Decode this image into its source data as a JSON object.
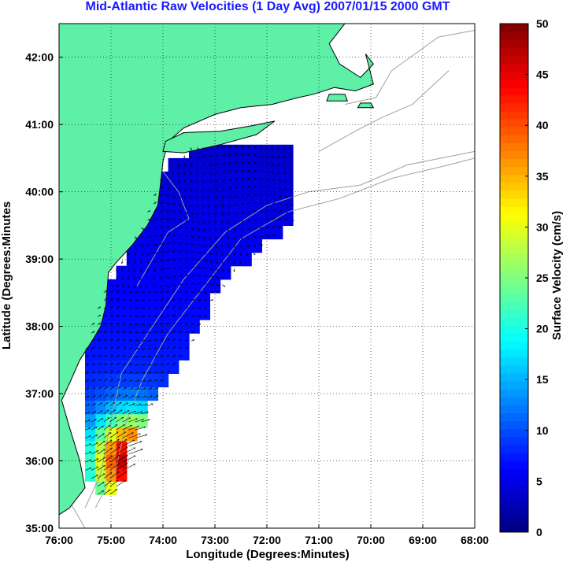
{
  "chart_data": {
    "type": "heatmap",
    "title": "Mid-Atlantic Raw Velocities (1 Day Avg) 2007/01/15 2000 GMT",
    "xlabel": "Longitude (Degrees:Minutes)",
    "ylabel": "Latitude (Degrees:Minutes",
    "x_ticks": [
      "76:00",
      "75:00",
      "74:00",
      "73:00",
      "72:00",
      "71:00",
      "70:00",
      "69:00",
      "68:00"
    ],
    "y_ticks": [
      "42:00",
      "41:00",
      "40:00",
      "39:00",
      "38:00",
      "37:00",
      "36:00",
      "35:00"
    ],
    "xlim": [
      -76,
      -68
    ],
    "ylim": [
      35,
      42.5
    ],
    "grid": true,
    "colorbar": {
      "label": "Surface Velocity (cm/s)",
      "min": 0,
      "max": 50,
      "ticks": [
        "50",
        "45",
        "40",
        "35",
        "30",
        "25",
        "20",
        "15",
        "10",
        "5",
        "0"
      ],
      "colormap": "jet"
    },
    "colors": {
      "land": "#5ef0a6",
      "coastline": "#000000",
      "bathymetry": "#a0a0a0",
      "grid": "#000000",
      "title": "#1a1aff"
    },
    "velocity_field": {
      "lon_range": [
        -75.5,
        -71.5
      ],
      "lat_range": [
        35.5,
        40.7
      ],
      "cell_deg": 0.2,
      "typical_speed_cms": 8,
      "max_speed_cms": 50,
      "max_location": [
        -74.6,
        36.0
      ]
    }
  }
}
